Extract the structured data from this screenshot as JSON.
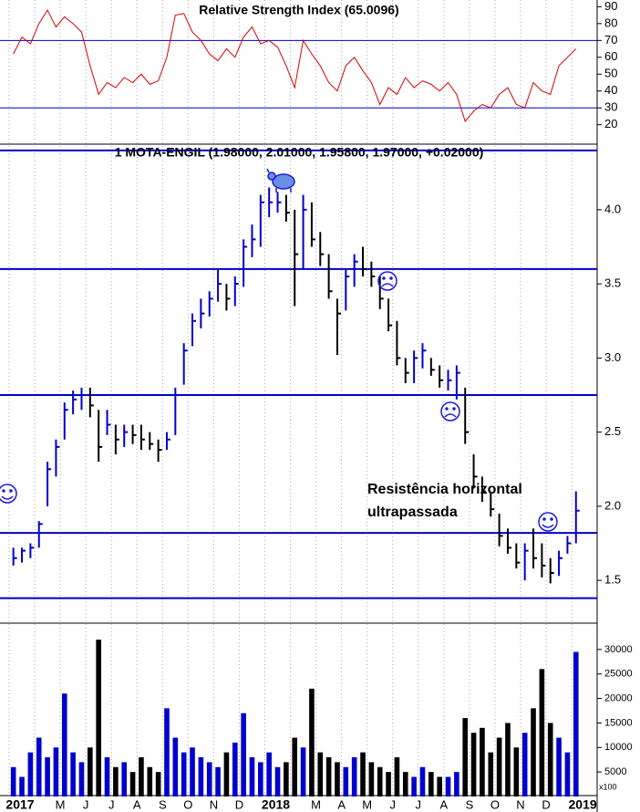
{
  "chart_data": [
    {
      "type": "line",
      "title": "Relative Strength Index (65.0096)",
      "values": [
        62,
        72,
        68,
        80,
        88,
        78,
        84,
        80,
        75,
        55,
        38,
        45,
        42,
        48,
        45,
        50,
        44,
        46,
        60,
        85,
        86,
        75,
        70,
        62,
        58,
        65,
        60,
        72,
        78,
        68,
        70,
        66,
        55,
        42,
        70,
        62,
        55,
        45,
        40,
        55,
        60,
        52,
        45,
        32,
        42,
        38,
        48,
        42,
        46,
        44,
        40,
        45,
        38,
        22,
        28,
        32,
        30,
        38,
        42,
        32,
        30,
        45,
        40,
        38,
        55,
        60,
        65
      ],
      "color": "#d40000",
      "ylim": [
        9,
        94
      ],
      "yticks": [
        20,
        30,
        40,
        50,
        60,
        70,
        80,
        90
      ],
      "hlines": [
        70,
        30
      ],
      "hline_color": "#0000cc"
    },
    {
      "type": "hlc",
      "title": "1 MOTA-ENGIL (1.98000, 2.01000, 1.95800, 1.97000, +0.02000)",
      "high": [
        1.72,
        1.72,
        1.75,
        1.9,
        2.3,
        2.45,
        2.7,
        2.78,
        2.8,
        2.8,
        2.65,
        2.65,
        2.55,
        2.55,
        2.55,
        2.55,
        2.5,
        2.45,
        2.5,
        2.8,
        3.1,
        3.3,
        3.4,
        3.45,
        3.6,
        3.5,
        3.55,
        3.8,
        3.9,
        4.1,
        4.15,
        4.12,
        4.1,
        4.0,
        4.1,
        4.05,
        3.85,
        3.7,
        3.4,
        3.6,
        3.7,
        3.75,
        3.65,
        3.55,
        3.4,
        3.25,
        3.0,
        3.05,
        3.1,
        3.0,
        2.95,
        2.92,
        2.95,
        2.8,
        2.35,
        2.2,
        2.1,
        1.95,
        1.85,
        1.75,
        1.75,
        1.85,
        1.75,
        1.65,
        1.7,
        1.8,
        2.1
      ],
      "low": [
        1.6,
        1.62,
        1.65,
        1.72,
        2.0,
        2.2,
        2.45,
        2.62,
        2.65,
        2.6,
        2.3,
        2.48,
        2.35,
        2.4,
        2.42,
        2.38,
        2.38,
        2.3,
        2.38,
        2.48,
        2.82,
        3.08,
        3.2,
        3.28,
        3.38,
        3.32,
        3.35,
        3.48,
        3.68,
        3.75,
        3.95,
        3.98,
        3.92,
        3.35,
        3.6,
        3.75,
        3.62,
        3.4,
        3.02,
        3.32,
        3.48,
        3.55,
        3.48,
        3.33,
        3.18,
        2.95,
        2.83,
        2.83,
        2.93,
        2.88,
        2.8,
        2.78,
        2.72,
        2.42,
        2.12,
        2.03,
        1.93,
        1.73,
        1.68,
        1.58,
        1.5,
        1.58,
        1.52,
        1.48,
        1.53,
        1.68,
        1.75
      ],
      "close": [
        1.65,
        1.7,
        1.72,
        1.88,
        2.25,
        2.4,
        2.65,
        2.72,
        2.75,
        2.68,
        2.4,
        2.55,
        2.45,
        2.5,
        2.48,
        2.45,
        2.42,
        2.38,
        2.45,
        2.75,
        3.05,
        3.25,
        3.3,
        3.4,
        3.5,
        3.4,
        3.5,
        3.75,
        3.8,
        4.05,
        4.05,
        4.05,
        3.98,
        3.7,
        4.0,
        3.8,
        3.7,
        3.45,
        3.3,
        3.55,
        3.65,
        3.6,
        3.55,
        3.4,
        3.22,
        3.0,
        2.9,
        3.0,
        3.05,
        2.92,
        2.85,
        2.85,
        2.9,
        2.5,
        2.2,
        2.1,
        1.98,
        1.8,
        1.72,
        1.62,
        1.7,
        1.65,
        1.6,
        1.55,
        1.65,
        1.75,
        1.97
      ],
      "up_color": "#0000cc",
      "down_color": "#000000",
      "ylim": [
        1.23,
        4.43
      ],
      "yticks": [
        {
          "value": 1.5,
          "label": "1.5"
        },
        {
          "value": 2,
          "label": "2.0"
        },
        {
          "value": 2.5,
          "label": "2.5"
        },
        {
          "value": 3,
          "label": "3.0"
        },
        {
          "value": 3.5,
          "label": "3.5"
        },
        {
          "value": 4,
          "label": "4.0"
        }
      ],
      "hlines": [
        4.4,
        3.6,
        2.75,
        1.82,
        1.38
      ],
      "hline_color": "#0000cc",
      "annotation": [
        "Resistência horizontal",
        "ultrapassada"
      ],
      "annotation_color": "#1a1ad8"
    },
    {
      "type": "bar",
      "categories": [
        "2017",
        null,
        null,
        null,
        null,
        null,
        "M",
        null,
        null,
        "J",
        null,
        null,
        "J",
        null,
        null,
        "A",
        null,
        null,
        "S",
        null,
        null,
        "O",
        null,
        null,
        "N",
        null,
        null,
        "D",
        null,
        null,
        "2018",
        null,
        null,
        null,
        null,
        null,
        "M",
        null,
        null,
        "A",
        null,
        null,
        "M",
        null,
        null,
        "J",
        null,
        null,
        "J",
        null,
        null,
        "A",
        null,
        null,
        "S",
        null,
        null,
        "O",
        null,
        null,
        "N",
        null,
        null,
        "D",
        null,
        null,
        "2019"
      ],
      "values": [
        6000,
        4000,
        9000,
        12000,
        8000,
        10000,
        21000,
        9000,
        7000,
        10000,
        32000,
        8000,
        6000,
        7000,
        5000,
        8000,
        6000,
        5000,
        18000,
        12000,
        9000,
        10000,
        8000,
        7000,
        6000,
        9000,
        11000,
        17000,
        8000,
        7000,
        9000,
        6000,
        7000,
        12000,
        10000,
        22000,
        9000,
        8000,
        7000,
        6000,
        8000,
        9000,
        7000,
        6000,
        5000,
        8000,
        5000,
        4000,
        6000,
        5000,
        4000,
        4000,
        5000,
        16000,
        13000,
        14000,
        9000,
        12000,
        15000,
        10000,
        13000,
        18000,
        26000,
        15000,
        12000,
        9000,
        29500
      ],
      "up_color": "#0000cc",
      "down_color": "#000000",
      "ylim": [
        0,
        35000
      ],
      "yticks": [
        5000,
        10000,
        15000,
        20000,
        25000,
        30000
      ],
      "y_unit_label": "x100",
      "grid": true
    }
  ]
}
